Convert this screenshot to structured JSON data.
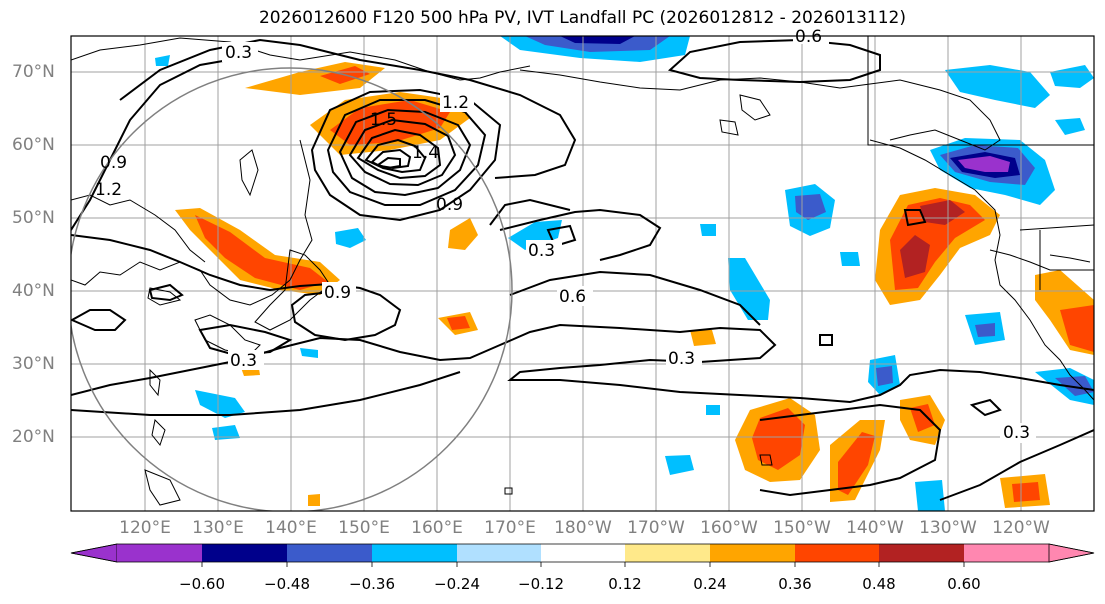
{
  "title": "2026012600 F120 500 hPa PV, IVT Landfall PC (2026012812 - 2026013112)",
  "lat_labels": [
    "70°N",
    "60°N",
    "50°N",
    "40°N",
    "30°N",
    "20°N"
  ],
  "lon_labels": [
    "120°E",
    "130°E",
    "140°E",
    "150°E",
    "160°E",
    "170°E",
    "180°W",
    "170°W",
    "160°W",
    "150°W",
    "140°W",
    "130°W",
    "120°W"
  ],
  "contour_labels": [
    "0.3",
    "0.6",
    "1.2",
    "1.5",
    "0.9",
    "0.9",
    "1.2",
    "0.3",
    "0.9",
    "0.3",
    "0.6",
    "0.3",
    "0.3",
    "1.4"
  ],
  "colorbar": {
    "tick_labels": [
      "−0.60",
      "−0.48",
      "−0.36",
      "−0.24",
      "−0.12",
      "0.12",
      "0.24",
      "0.36",
      "0.48",
      "0.60"
    ],
    "colors": [
      "#9a32cd",
      "#00008b",
      "#3b5bcb",
      "#00bfff",
      "#b0e0ff",
      "#ffffff",
      "#ffe98a",
      "#ffa500",
      "#ff4500",
      "#b22222",
      "#ff87b0"
    ]
  },
  "colors": {
    "contour": "#000000",
    "coast": "#000000",
    "grid": "#a0a0a0",
    "circle": "#808080"
  }
}
